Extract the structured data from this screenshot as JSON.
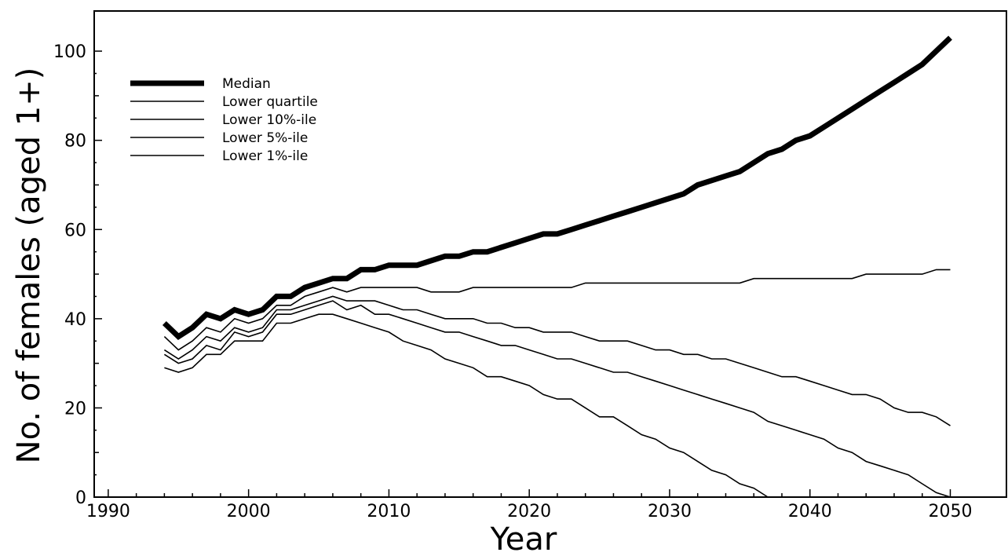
{
  "chart_data": {
    "type": "line",
    "title": "",
    "xlabel": "Year",
    "ylabel": "No. of females (aged 1+)",
    "xlim": [
      1989,
      2054
    ],
    "ylim": [
      0,
      109
    ],
    "x_ticks": [
      1990,
      2000,
      2010,
      2020,
      2030,
      2040,
      2050
    ],
    "y_ticks": [
      0,
      20,
      40,
      60,
      80,
      100
    ],
    "grid": false,
    "legend_position": "top-left",
    "series": [
      {
        "name": "Median",
        "style": "thick",
        "points": [
          [
            1994,
            39
          ],
          [
            1995,
            36
          ],
          [
            1996,
            38
          ],
          [
            1997,
            41
          ],
          [
            1998,
            40
          ],
          [
            1999,
            42
          ],
          [
            2000,
            41
          ],
          [
            2001,
            42
          ],
          [
            2002,
            45
          ],
          [
            2003,
            45
          ],
          [
            2004,
            47
          ],
          [
            2005,
            48
          ],
          [
            2006,
            49
          ],
          [
            2007,
            49
          ],
          [
            2008,
            51
          ],
          [
            2009,
            51
          ],
          [
            2010,
            52
          ],
          [
            2011,
            52
          ],
          [
            2012,
            52
          ],
          [
            2013,
            53
          ],
          [
            2014,
            54
          ],
          [
            2015,
            54
          ],
          [
            2016,
            55
          ],
          [
            2017,
            55
          ],
          [
            2018,
            56
          ],
          [
            2019,
            57
          ],
          [
            2020,
            58
          ],
          [
            2021,
            59
          ],
          [
            2022,
            59
          ],
          [
            2023,
            60
          ],
          [
            2024,
            61
          ],
          [
            2025,
            62
          ],
          [
            2026,
            63
          ],
          [
            2027,
            64
          ],
          [
            2028,
            65
          ],
          [
            2029,
            66
          ],
          [
            2030,
            67
          ],
          [
            2031,
            68
          ],
          [
            2032,
            70
          ],
          [
            2033,
            71
          ],
          [
            2034,
            72
          ],
          [
            2035,
            73
          ],
          [
            2036,
            75
          ],
          [
            2037,
            77
          ],
          [
            2038,
            78
          ],
          [
            2039,
            80
          ],
          [
            2040,
            81
          ],
          [
            2041,
            83
          ],
          [
            2042,
            85
          ],
          [
            2043,
            87
          ],
          [
            2044,
            89
          ],
          [
            2045,
            91
          ],
          [
            2046,
            93
          ],
          [
            2047,
            95
          ],
          [
            2048,
            97
          ],
          [
            2049,
            100
          ],
          [
            2050,
            103
          ]
        ]
      },
      {
        "name": "Lower quartile",
        "style": "thin",
        "points": [
          [
            1994,
            36
          ],
          [
            1995,
            33
          ],
          [
            1996,
            35
          ],
          [
            1997,
            38
          ],
          [
            1998,
            37
          ],
          [
            1999,
            40
          ],
          [
            2000,
            39
          ],
          [
            2001,
            40
          ],
          [
            2002,
            43
          ],
          [
            2003,
            43
          ],
          [
            2004,
            45
          ],
          [
            2005,
            46
          ],
          [
            2006,
            47
          ],
          [
            2007,
            46
          ],
          [
            2008,
            47
          ],
          [
            2010,
            47
          ],
          [
            2012,
            47
          ],
          [
            2013,
            46
          ],
          [
            2015,
            46
          ],
          [
            2016,
            47
          ],
          [
            2023,
            47
          ],
          [
            2024,
            48
          ],
          [
            2035,
            48
          ],
          [
            2036,
            49
          ],
          [
            2043,
            49
          ],
          [
            2044,
            50
          ],
          [
            2048,
            50
          ],
          [
            2049,
            51
          ],
          [
            2050,
            51
          ]
        ]
      },
      {
        "name": "Lower 10%-ile",
        "style": "thin",
        "points": [
          [
            1994,
            33
          ],
          [
            1995,
            31
          ],
          [
            1996,
            33
          ],
          [
            1997,
            36
          ],
          [
            1998,
            35
          ],
          [
            1999,
            38
          ],
          [
            2000,
            37
          ],
          [
            2001,
            38
          ],
          [
            2002,
            42
          ],
          [
            2003,
            42
          ],
          [
            2004,
            43
          ],
          [
            2005,
            44
          ],
          [
            2006,
            45
          ],
          [
            2007,
            44
          ],
          [
            2009,
            44
          ],
          [
            2010,
            43
          ],
          [
            2011,
            42
          ],
          [
            2012,
            42
          ],
          [
            2013,
            41
          ],
          [
            2014,
            40
          ],
          [
            2016,
            40
          ],
          [
            2017,
            39
          ],
          [
            2018,
            39
          ],
          [
            2019,
            38
          ],
          [
            2020,
            38
          ],
          [
            2021,
            37
          ],
          [
            2023,
            37
          ],
          [
            2024,
            36
          ],
          [
            2025,
            35
          ],
          [
            2027,
            35
          ],
          [
            2028,
            34
          ],
          [
            2029,
            33
          ],
          [
            2030,
            33
          ],
          [
            2031,
            32
          ],
          [
            2032,
            32
          ],
          [
            2033,
            31
          ],
          [
            2034,
            31
          ],
          [
            2035,
            30
          ],
          [
            2036,
            29
          ],
          [
            2037,
            28
          ],
          [
            2038,
            27
          ],
          [
            2039,
            27
          ],
          [
            2040,
            26
          ],
          [
            2041,
            25
          ],
          [
            2042,
            24
          ],
          [
            2043,
            23
          ],
          [
            2044,
            23
          ],
          [
            2045,
            22
          ],
          [
            2046,
            20
          ],
          [
            2047,
            19
          ],
          [
            2048,
            19
          ],
          [
            2049,
            18
          ],
          [
            2050,
            16
          ]
        ]
      },
      {
        "name": "Lower 5%-ile",
        "style": "thin",
        "points": [
          [
            1994,
            32
          ],
          [
            1995,
            30
          ],
          [
            1996,
            31
          ],
          [
            1997,
            34
          ],
          [
            1998,
            33
          ],
          [
            1999,
            37
          ],
          [
            2000,
            36
          ],
          [
            2001,
            37
          ],
          [
            2002,
            41
          ],
          [
            2003,
            41
          ],
          [
            2004,
            42
          ],
          [
            2005,
            43
          ],
          [
            2006,
            44
          ],
          [
            2007,
            42
          ],
          [
            2008,
            43
          ],
          [
            2009,
            41
          ],
          [
            2010,
            41
          ],
          [
            2011,
            40
          ],
          [
            2012,
            39
          ],
          [
            2013,
            38
          ],
          [
            2014,
            37
          ],
          [
            2015,
            37
          ],
          [
            2016,
            36
          ],
          [
            2017,
            35
          ],
          [
            2018,
            34
          ],
          [
            2019,
            34
          ],
          [
            2020,
            33
          ],
          [
            2021,
            32
          ],
          [
            2022,
            31
          ],
          [
            2023,
            31
          ],
          [
            2024,
            30
          ],
          [
            2025,
            29
          ],
          [
            2026,
            28
          ],
          [
            2027,
            28
          ],
          [
            2028,
            27
          ],
          [
            2029,
            26
          ],
          [
            2030,
            25
          ],
          [
            2031,
            24
          ],
          [
            2032,
            23
          ],
          [
            2033,
            22
          ],
          [
            2034,
            21
          ],
          [
            2035,
            20
          ],
          [
            2036,
            19
          ],
          [
            2037,
            17
          ],
          [
            2038,
            16
          ],
          [
            2039,
            15
          ],
          [
            2040,
            14
          ],
          [
            2041,
            13
          ],
          [
            2042,
            11
          ],
          [
            2043,
            10
          ],
          [
            2044,
            8
          ],
          [
            2045,
            7
          ],
          [
            2046,
            6
          ],
          [
            2047,
            5
          ],
          [
            2048,
            3
          ],
          [
            2049,
            1
          ],
          [
            2050,
            0
          ]
        ]
      },
      {
        "name": "Lower 1%-ile",
        "style": "thin",
        "points": [
          [
            1994,
            29
          ],
          [
            1995,
            28
          ],
          [
            1996,
            29
          ],
          [
            1997,
            32
          ],
          [
            1998,
            32
          ],
          [
            1999,
            35
          ],
          [
            2000,
            35
          ],
          [
            2001,
            35
          ],
          [
            2002,
            39
          ],
          [
            2003,
            39
          ],
          [
            2004,
            40
          ],
          [
            2005,
            41
          ],
          [
            2006,
            41
          ],
          [
            2007,
            40
          ],
          [
            2008,
            39
          ],
          [
            2009,
            38
          ],
          [
            2010,
            37
          ],
          [
            2011,
            35
          ],
          [
            2012,
            34
          ],
          [
            2013,
            33
          ],
          [
            2014,
            31
          ],
          [
            2015,
            30
          ],
          [
            2016,
            29
          ],
          [
            2017,
            27
          ],
          [
            2018,
            27
          ],
          [
            2019,
            26
          ],
          [
            2020,
            25
          ],
          [
            2021,
            23
          ],
          [
            2022,
            22
          ],
          [
            2023,
            22
          ],
          [
            2024,
            20
          ],
          [
            2025,
            18
          ],
          [
            2026,
            18
          ],
          [
            2027,
            16
          ],
          [
            2028,
            14
          ],
          [
            2029,
            13
          ],
          [
            2030,
            11
          ],
          [
            2031,
            10
          ],
          [
            2032,
            8
          ],
          [
            2033,
            6
          ],
          [
            2034,
            5
          ],
          [
            2035,
            3
          ],
          [
            2036,
            2
          ],
          [
            2037,
            0
          ]
        ]
      }
    ]
  }
}
